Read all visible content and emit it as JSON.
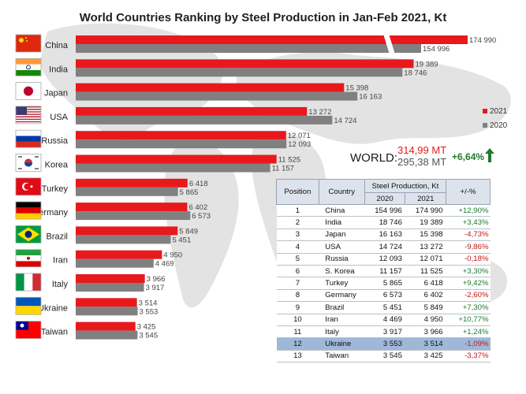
{
  "title": "World Countries Ranking by Steel Production in Jan-Feb 2021, Kt",
  "legend": [
    {
      "label": "2021",
      "color": "#e8191d"
    },
    {
      "label": "2020",
      "color": "#808080"
    }
  ],
  "world": {
    "label": "WORLD:",
    "value_2021": "314,99 MT",
    "value_2020": "295,38 MT",
    "change": "+6,64%"
  },
  "chart_data": {
    "type": "bar",
    "orientation": "horizontal",
    "categories": [
      "China",
      "India",
      "Japan",
      "USA",
      "Russia",
      "S. Korea",
      "Turkey",
      "Germany",
      "Brazil",
      "Iran",
      "Italy",
      "Ukraine",
      "Taiwan"
    ],
    "series": [
      {
        "name": "2021",
        "color": "#e8191d",
        "values": [
          174990,
          19389,
          15398,
          13272,
          12071,
          11525,
          6418,
          6402,
          5849,
          4950,
          3966,
          3514,
          3425
        ],
        "labels": [
          "174 990",
          "19 389",
          "15 398",
          "13 272",
          "12 071",
          "11 525",
          "6 418",
          "6 402",
          "5 849",
          "4 950",
          "3 966",
          "3 514",
          "3 425"
        ]
      },
      {
        "name": "2020",
        "color": "#808080",
        "values": [
          154996,
          18746,
          16163,
          14724,
          12093,
          11157,
          5865,
          6573,
          5451,
          4469,
          3917,
          3553,
          3545
        ],
        "labels": [
          "154 996",
          "18 746",
          "16 163",
          "14 724",
          "12 093",
          "11 157",
          "5 865",
          "6 573",
          "5 451",
          "4 469",
          "3 917",
          "3 553",
          "3 545"
        ]
      }
    ],
    "axis_break": true,
    "title": "World Countries Ranking by Steel Production in Jan-Feb 2021, Kt"
  },
  "table": {
    "headers": {
      "position": "Position",
      "country": "Country",
      "group": "Steel Production, Kt",
      "y2020": "2020",
      "y2021": "2021",
      "change": "+/-%"
    },
    "rows": [
      {
        "pos": "1",
        "country": "China",
        "v2020": "154 996",
        "v2021": "174 990",
        "chg": "+12,90%"
      },
      {
        "pos": "2",
        "country": "India",
        "v2020": "18 746",
        "v2021": "19 389",
        "chg": "+3,43%"
      },
      {
        "pos": "3",
        "country": "Japan",
        "v2020": "16 163",
        "v2021": "15 398",
        "chg": "-4,73%"
      },
      {
        "pos": "4",
        "country": "USA",
        "v2020": "14 724",
        "v2021": "13 272",
        "chg": "-9,86%"
      },
      {
        "pos": "5",
        "country": "Russia",
        "v2020": "12 093",
        "v2021": "12 071",
        "chg": "-0,18%"
      },
      {
        "pos": "6",
        "country": "S. Korea",
        "v2020": "11 157",
        "v2021": "11 525",
        "chg": "+3,30%"
      },
      {
        "pos": "7",
        "country": "Turkey",
        "v2020": "5 865",
        "v2021": "6 418",
        "chg": "+9,42%"
      },
      {
        "pos": "8",
        "country": "Germany",
        "v2020": "6 573",
        "v2021": "6 402",
        "chg": "-2,60%"
      },
      {
        "pos": "9",
        "country": "Brazil",
        "v2020": "5 451",
        "v2021": "5 849",
        "chg": "+7,30%"
      },
      {
        "pos": "10",
        "country": "Iran",
        "v2020": "4 469",
        "v2021": "4 950",
        "chg": "+10,77%"
      },
      {
        "pos": "11",
        "country": "Italy",
        "v2020": "3 917",
        "v2021": "3 966",
        "chg": "+1,24%"
      },
      {
        "pos": "12",
        "country": "Ukraine",
        "v2020": "3 553",
        "v2021": "3 514",
        "chg": "-1,09%"
      },
      {
        "pos": "13",
        "country": "Taiwan",
        "v2020": "3 545",
        "v2021": "3 425",
        "chg": "-3,37%"
      }
    ],
    "highlight_row": "12"
  },
  "flags": [
    "china-flag-icon",
    "india-flag-icon",
    "japan-flag-icon",
    "usa-flag-icon",
    "russia-flag-icon",
    "south-korea-flag-icon",
    "turkey-flag-icon",
    "germany-flag-icon",
    "brazil-flag-icon",
    "iran-flag-icon",
    "italy-flag-icon",
    "ukraine-flag-icon",
    "taiwan-flag-icon"
  ]
}
